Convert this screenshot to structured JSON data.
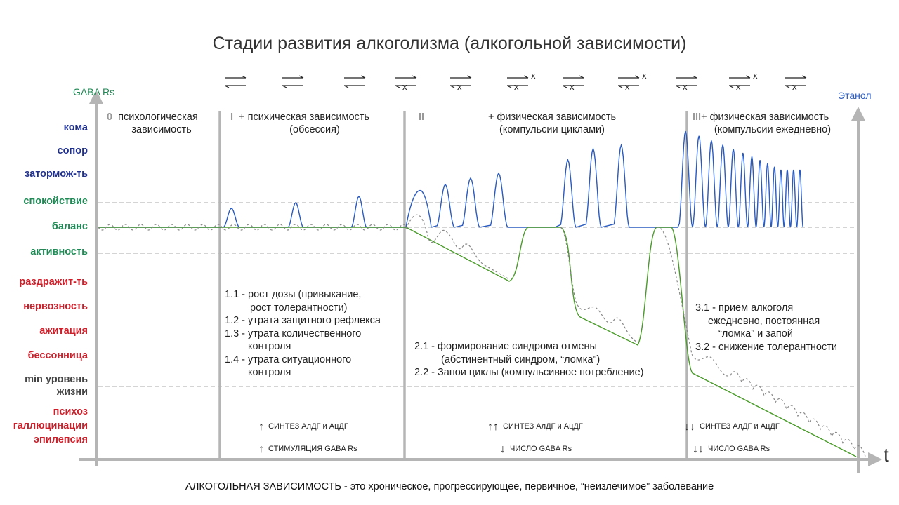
{
  "title": "Стадии развития алкоголизма (алкогольной зависимости)",
  "y_axis_left_label": "GABA Rs",
  "y_axis_right_label": "Этанол",
  "x_axis_label": "t",
  "state_levels": [
    {
      "label": "кома",
      "color": "#1f2f8c"
    },
    {
      "label": "сопор",
      "color": "#1f2f8c"
    },
    {
      "label": "затормож-ть",
      "color": "#1f2f8c"
    },
    {
      "label": "спокойствие",
      "color": "#1f8a55"
    },
    {
      "label": "баланс",
      "color": "#1f8a55"
    },
    {
      "label": "активность",
      "color": "#1f8a55"
    },
    {
      "label": "раздражит-ть",
      "color": "#cc1f2a"
    },
    {
      "label": "нервозность",
      "color": "#cc1f2a"
    },
    {
      "label": "ажитация",
      "color": "#cc1f2a"
    },
    {
      "label": "бессонница",
      "color": "#cc1f2a"
    },
    {
      "label": "min уровень",
      "color": "#444444"
    },
    {
      "label": "жизни",
      "color": "#444444"
    },
    {
      "label": "психоз",
      "color": "#cc1f2a"
    },
    {
      "label": "галлюцинации",
      "color": "#cc1f2a"
    },
    {
      "label": "эпилепсия",
      "color": "#cc1f2a"
    }
  ],
  "stages": [
    {
      "numeral": "0",
      "line1": "психологическая",
      "line2": "зависимость"
    },
    {
      "numeral": "I",
      "line1": "+ психическая зависимость",
      "line2": "(обсессия)"
    },
    {
      "numeral": "II",
      "line1": "+ физическая зависимость",
      "line2": "(компульсии циклами)"
    },
    {
      "numeral": "III",
      "line1": "+ физическая зависимость",
      "line2": "(компульсии ежедневно)"
    }
  ],
  "reaction_marks": {
    "blocked": "x"
  },
  "stage1_items": [
    "1.1 - рост дозы (привыкание,",
    "рост толерантности)",
    "1.2 - утрата защитного рефлекса",
    "1.3 - утрата количественного",
    "контроля",
    "1.4 - утрата ситуационного",
    "контроля"
  ],
  "stage2_items": [
    "2.1 - формирование синдрома отмены",
    "(абстинентный синдром, “ломка”)",
    "2.2 - Запои циклы (компульсивное потребление)"
  ],
  "stage3_items": [
    "3.1 - прием алкоголя",
    "ежедневно, постоянная",
    "“ломка” и запой",
    "3.2 - снижение толерантности"
  ],
  "enzyme_notes": [
    {
      "arrows": "↑",
      "text": "СИНТЕЗ АлДГ и АцДГ"
    },
    {
      "arrows": "↑",
      "text": "СТИМУЛЯЦИЯ GABA Rs"
    },
    {
      "arrows": "↑↑",
      "text": "СИНТЕЗ АлДГ и АцДГ"
    },
    {
      "arrows": "↓",
      "text": "ЧИСЛО GABA Rs"
    },
    {
      "arrows": "↓↓",
      "text": "СИНТЕЗ АлДГ и АцДГ"
    },
    {
      "arrows": "↓↓",
      "text": "ЧИСЛО GABA Rs"
    }
  ],
  "footer": "АЛКОГОЛЬНАЯ ЗАВИСИМОСТЬ - это хроническое, прогрессирующее, первичное, “неизлечимое” заболевание",
  "colors": {
    "ethanol": "#2a5bbf",
    "gaba": "#4a9a2a",
    "guides": "#aaaaaa",
    "axis": "#b5b5b5"
  }
}
